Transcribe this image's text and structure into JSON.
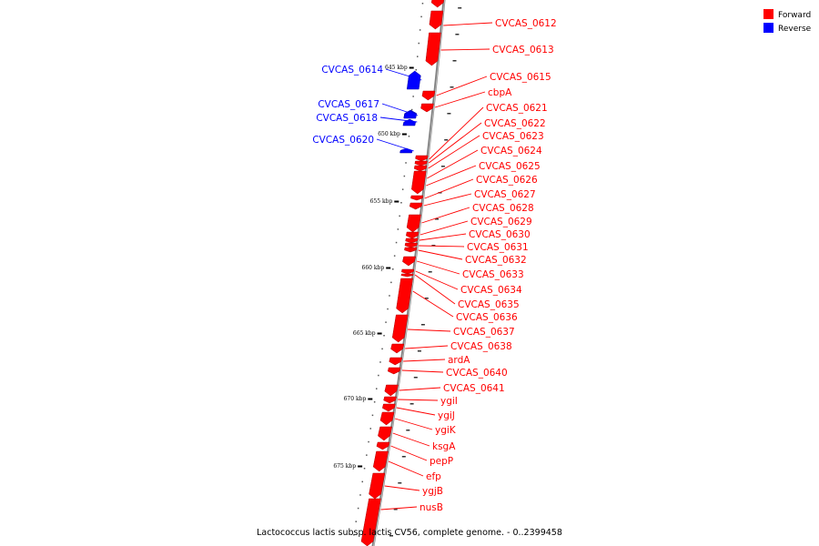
{
  "caption": "Lactococcus lactis subsp. lactis CV56, complete genome. - 0..2399458",
  "legend": [
    {
      "label": "Forward",
      "color": "#ff0000"
    },
    {
      "label": "Reverse",
      "color": "#0000ff"
    }
  ],
  "colors": {
    "forward": "#ff0000",
    "reverse": "#0000ff",
    "backbone": "#808080"
  },
  "ticks": [
    "645 kbp",
    "650 kbp",
    "655 kbp",
    "660 kbp",
    "665 kbp",
    "670 kbp",
    "675 kbp"
  ],
  "genes": [
    {
      "name": "CVCAS_0612",
      "strand": "forward"
    },
    {
      "name": "CVCAS_0613",
      "strand": "forward"
    },
    {
      "name": "CVCAS_0614",
      "strand": "reverse"
    },
    {
      "name": "CVCAS_0615",
      "strand": "forward"
    },
    {
      "name": "cbpA",
      "strand": "forward"
    },
    {
      "name": "CVCAS_0617",
      "strand": "reverse"
    },
    {
      "name": "CVCAS_0618",
      "strand": "reverse"
    },
    {
      "name": "CVCAS_0620",
      "strand": "reverse"
    },
    {
      "name": "CVCAS_0621",
      "strand": "forward"
    },
    {
      "name": "CVCAS_0622",
      "strand": "forward"
    },
    {
      "name": "CVCAS_0623",
      "strand": "forward"
    },
    {
      "name": "CVCAS_0624",
      "strand": "forward"
    },
    {
      "name": "CVCAS_0625",
      "strand": "forward"
    },
    {
      "name": "CVCAS_0626",
      "strand": "forward"
    },
    {
      "name": "CVCAS_0627",
      "strand": "forward"
    },
    {
      "name": "CVCAS_0628",
      "strand": "forward"
    },
    {
      "name": "CVCAS_0629",
      "strand": "forward"
    },
    {
      "name": "CVCAS_0630",
      "strand": "forward"
    },
    {
      "name": "CVCAS_0631",
      "strand": "forward"
    },
    {
      "name": "CVCAS_0632",
      "strand": "forward"
    },
    {
      "name": "CVCAS_0633",
      "strand": "forward"
    },
    {
      "name": "CVCAS_0634",
      "strand": "forward"
    },
    {
      "name": "CVCAS_0635",
      "strand": "forward"
    },
    {
      "name": "CVCAS_0636",
      "strand": "forward"
    },
    {
      "name": "CVCAS_0637",
      "strand": "forward"
    },
    {
      "name": "CVCAS_0638",
      "strand": "forward"
    },
    {
      "name": "ardA",
      "strand": "forward"
    },
    {
      "name": "CVCAS_0640",
      "strand": "forward"
    },
    {
      "name": "CVCAS_0641",
      "strand": "forward"
    },
    {
      "name": "ygiI",
      "strand": "forward"
    },
    {
      "name": "ygiJ",
      "strand": "forward"
    },
    {
      "name": "ygiK",
      "strand": "forward"
    },
    {
      "name": "ksgA",
      "strand": "forward"
    },
    {
      "name": "pepP",
      "strand": "forward"
    },
    {
      "name": "efp",
      "strand": "forward"
    },
    {
      "name": "ygjB",
      "strand": "forward"
    },
    {
      "name": "nusB",
      "strand": "forward"
    }
  ]
}
